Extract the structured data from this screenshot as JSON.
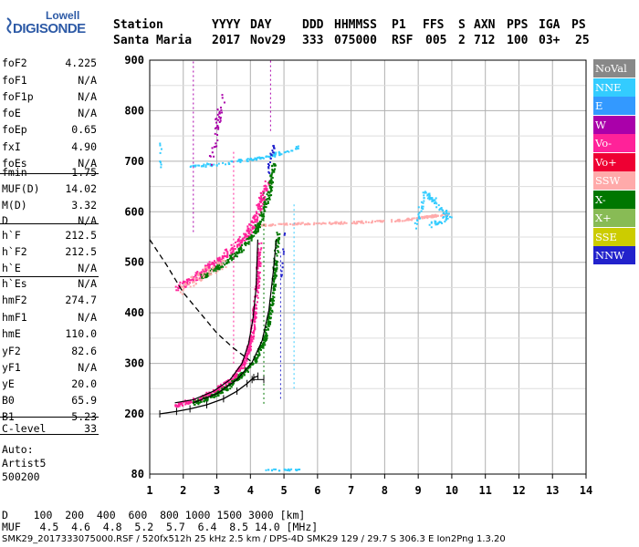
{
  "logo": {
    "top": "Lowell",
    "main": "DIGISONDE"
  },
  "header": {
    "labels": [
      "Station",
      "YYYY",
      "DAY",
      "DDD",
      "HHMMSS",
      "P1",
      "FFS",
      "S",
      "AXN",
      "PPS",
      "IGA",
      "PS"
    ],
    "values": [
      "Santa Maria",
      "2017",
      "Nov29",
      "333",
      "075000",
      "RSF",
      "005",
      "2",
      "712",
      "100",
      "03+",
      "25"
    ]
  },
  "params": [
    {
      "name": "foF2",
      "value": "4.225"
    },
    {
      "name": "foF1",
      "value": "N/A"
    },
    {
      "name": "foF1p",
      "value": "N/A"
    },
    {
      "name": "foE",
      "value": "N/A"
    },
    {
      "name": "foEp",
      "value": "0.65"
    },
    {
      "name": "fxI",
      "value": "4.90"
    },
    {
      "name": "foEs",
      "value": "N/A"
    },
    {
      "name": "fmin",
      "value": "1.75"
    },
    {
      "name": "MUF(D)",
      "value": "14.02"
    },
    {
      "name": "M(D)",
      "value": "3.32"
    },
    {
      "name": "D",
      "value": "N/A"
    },
    {
      "name": "h`F",
      "value": "212.5"
    },
    {
      "name": "h`F2",
      "value": "212.5"
    },
    {
      "name": "h`E",
      "value": "N/A"
    },
    {
      "name": "h`Es",
      "value": "N/A"
    },
    {
      "name": "hmF2",
      "value": "274.7"
    },
    {
      "name": "hmF1",
      "value": "N/A"
    },
    {
      "name": "hmE",
      "value": "110.0"
    },
    {
      "name": "yF2",
      "value": "82.6"
    },
    {
      "name": "yF1",
      "value": "N/A"
    },
    {
      "name": "yE",
      "value": "20.0"
    },
    {
      "name": "B0",
      "value": "65.9"
    },
    {
      "name": "B1",
      "value": "5.23"
    },
    {
      "name": "C-level",
      "value": "33"
    }
  ],
  "autoscaling": {
    "line1": "Auto:",
    "line2": "Artist5",
    "line3": "500200"
  },
  "legend": [
    {
      "label": "NoVal",
      "color": "#888888"
    },
    {
      "label": "NNE",
      "color": "#33ccff"
    },
    {
      "label": "E",
      "color": "#3399ff"
    },
    {
      "label": "W",
      "color": "#aa00aa"
    },
    {
      "label": "Vo-",
      "color": "#ff2299"
    },
    {
      "label": "Vo+",
      "color": "#ee0033"
    },
    {
      "label": "SSW",
      "color": "#ffaaaa"
    },
    {
      "label": "X-",
      "color": "#007700"
    },
    {
      "label": "X+",
      "color": "#88bb55"
    },
    {
      "label": "SSE",
      "color": "#cccc00"
    },
    {
      "label": "NNW",
      "color": "#2222cc"
    }
  ],
  "footer": {
    "d_row": "D    100  200  400  600  800 1000 1500 3000 [km]",
    "muf_row": "MUF   4.5  4.6  4.8  5.2  5.7  6.4  8.5 14.0 [MHz]",
    "info": "SMK29_2017333075000.RSF / 520fx512h 25 kHz 2.5 km / DPS-4D SMK29 129 / 29.7 S 306.3 E Ion2Png 1.3.20"
  },
  "chart_data": {
    "type": "scatter",
    "xlim": [
      1,
      14
    ],
    "ylim": [
      80,
      900
    ],
    "x_ticks": [
      1,
      2,
      3,
      4,
      5,
      6,
      7,
      8,
      9,
      10,
      11,
      12,
      13,
      14
    ],
    "y_ticks": [
      80,
      200,
      300,
      400,
      500,
      600,
      700,
      800,
      900
    ],
    "grid": true,
    "series": [
      {
        "name": "Vo-",
        "color": "#ff2299",
        "x": [
          1.75,
          2.0,
          2.5,
          3.0,
          3.4,
          3.7,
          3.9,
          4.05,
          4.15,
          4.22
        ],
        "y": [
          218,
          222,
          232,
          250,
          272,
          300,
          335,
          380,
          440,
          520
        ]
      },
      {
        "name": "X-",
        "color": "#007700",
        "x": [
          2.4,
          2.8,
          3.3,
          3.8,
          4.2,
          4.45,
          4.6,
          4.7,
          4.8
        ],
        "y": [
          222,
          232,
          252,
          285,
          320,
          370,
          430,
          500,
          560
        ]
      },
      {
        "name": "NNE",
        "color": "#33ccff",
        "x": [
          4.5,
          5.0,
          6.0,
          7.0,
          8.0,
          9.0,
          9.5,
          9.9
        ],
        "y": [
          575,
          580,
          582,
          583,
          586,
          590,
          600,
          595
        ]
      },
      {
        "name": "NNW",
        "color": "#2222cc",
        "x": [
          4.0,
          4.2,
          4.4,
          4.6,
          4.8,
          4.9
        ],
        "y": [
          250,
          300,
          380,
          460,
          540,
          600
        ]
      }
    ],
    "profile": {
      "x": [
        1.3,
        1.8,
        2.2,
        2.7,
        3.2,
        3.6,
        3.9,
        4.1,
        4.225
      ],
      "y": [
        200,
        205,
        210,
        218,
        230,
        245,
        260,
        272,
        274.7
      ]
    },
    "muf_curve": {
      "x": [
        1.0,
        1.5,
        2.0,
        2.5,
        3.0,
        3.5,
        4.0
      ],
      "y": [
        545,
        495,
        440,
        400,
        360,
        330,
        305
      ]
    }
  }
}
